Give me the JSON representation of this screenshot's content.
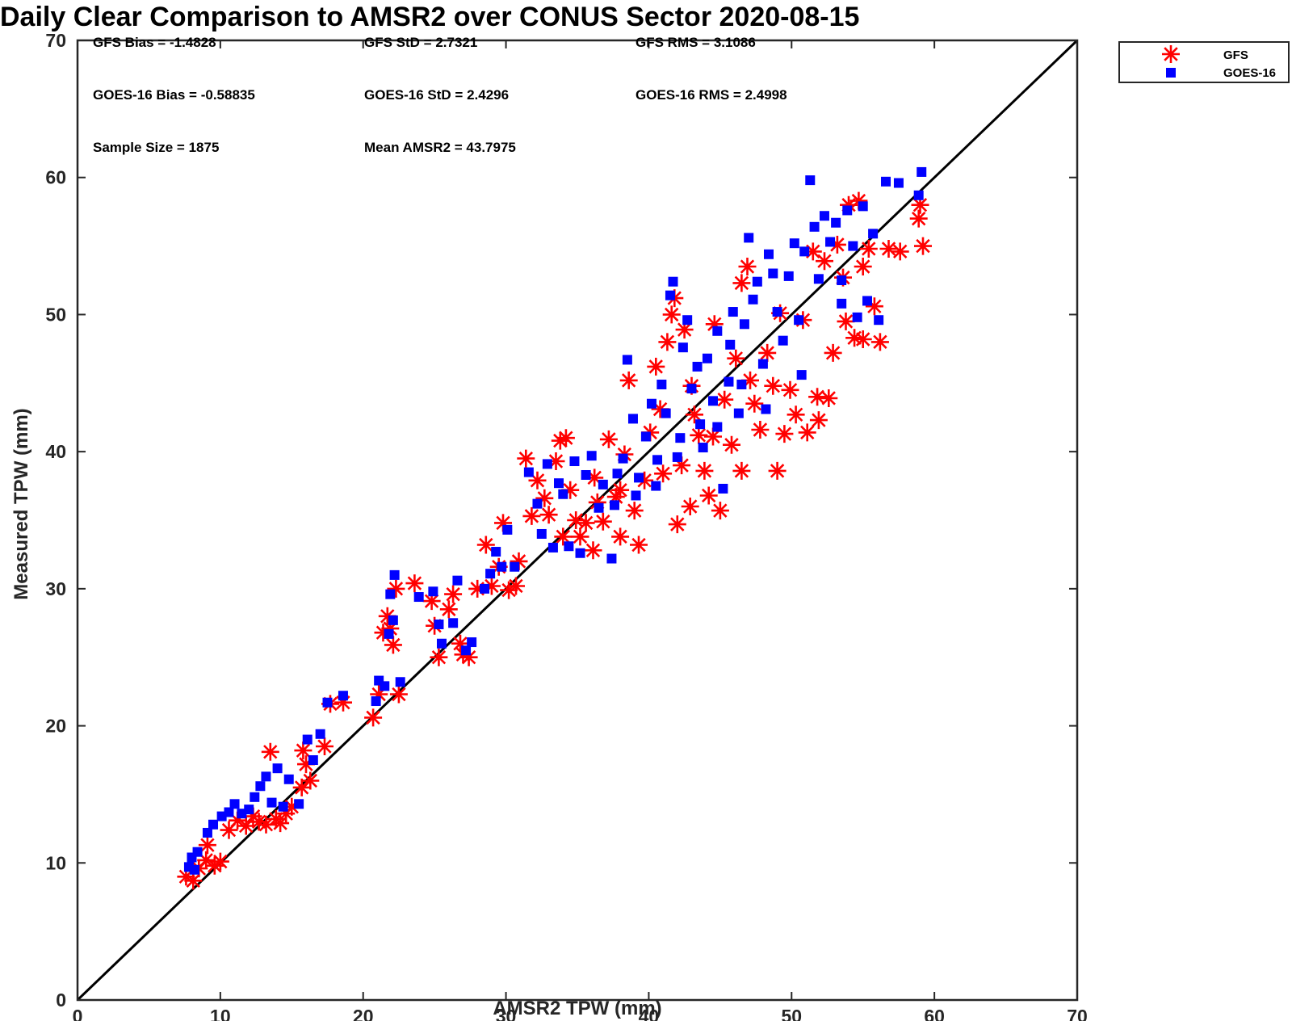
{
  "chart_data": {
    "type": "scatter",
    "title": "Daily Clear Comparison to AMSR2 over CONUS Sector 2020-08-15",
    "xlabel": "AMSR2 TPW (mm)",
    "ylabel": "Measured TPW (mm)",
    "xlim": [
      0,
      70
    ],
    "ylim": [
      0,
      70
    ],
    "xticks": [
      "0",
      "10",
      "20",
      "30",
      "40",
      "50",
      "60",
      "70"
    ],
    "yticks": [
      "0",
      "10",
      "20",
      "30",
      "40",
      "50",
      "60",
      "70"
    ],
    "grid": false,
    "legend_position": "outside top-right",
    "reference_line": {
      "x": [
        0,
        70
      ],
      "y": [
        0,
        70
      ]
    },
    "stats": [
      "GFS Bias = -1.4828",
      "GFS StD = 2.7321",
      "GFS RMS = 3.1086",
      "GOES-16 Bias = -0.58835",
      "GOES-16 StD = 2.4296",
      "GOES-16 RMS = 2.4998",
      "Sample Size = 1875",
      "Mean AMSR2 = 43.7975"
    ],
    "series": [
      {
        "name": "GFS",
        "marker": "asterisk",
        "color": "#ff0000",
        "points": [
          [
            7.6,
            9.0
          ],
          [
            8.1,
            8.7
          ],
          [
            8.5,
            9.6
          ],
          [
            9.0,
            10.2
          ],
          [
            9.6,
            9.8
          ],
          [
            10.0,
            10.1
          ],
          [
            9.1,
            11.3
          ],
          [
            10.6,
            12.4
          ],
          [
            11.2,
            13.1
          ],
          [
            11.8,
            12.7
          ],
          [
            12.3,
            13.4
          ],
          [
            12.7,
            13.0
          ],
          [
            13.2,
            12.8
          ],
          [
            13.5,
            18.1
          ],
          [
            13.9,
            13.2
          ],
          [
            14.2,
            12.9
          ],
          [
            14.6,
            13.6
          ],
          [
            15.0,
            14.1
          ],
          [
            15.7,
            15.5
          ],
          [
            16.0,
            17.2
          ],
          [
            15.8,
            18.2
          ],
          [
            16.3,
            16.0
          ],
          [
            17.3,
            18.5
          ],
          [
            17.7,
            21.6
          ],
          [
            18.6,
            21.7
          ],
          [
            20.7,
            20.6
          ],
          [
            21.1,
            22.3
          ],
          [
            21.4,
            26.8
          ],
          [
            21.7,
            28.0
          ],
          [
            22.1,
            25.9
          ],
          [
            21.9,
            27.1
          ],
          [
            22.3,
            30.0
          ],
          [
            22.5,
            22.3
          ],
          [
            23.6,
            30.4
          ],
          [
            24.8,
            29.1
          ],
          [
            25.3,
            25.0
          ],
          [
            25.0,
            27.3
          ],
          [
            26.0,
            28.5
          ],
          [
            26.3,
            29.6
          ],
          [
            26.8,
            26.0
          ],
          [
            27.0,
            25.2
          ],
          [
            27.4,
            25.0
          ],
          [
            28.0,
            30.0
          ],
          [
            28.6,
            33.2
          ],
          [
            29.0,
            30.2
          ],
          [
            29.5,
            31.6
          ],
          [
            29.8,
            34.8
          ],
          [
            30.2,
            29.9
          ],
          [
            30.7,
            30.2
          ],
          [
            30.9,
            32.0
          ],
          [
            31.4,
            39.5
          ],
          [
            31.8,
            35.3
          ],
          [
            32.2,
            37.9
          ],
          [
            32.7,
            36.6
          ],
          [
            33.0,
            35.4
          ],
          [
            33.5,
            39.3
          ],
          [
            33.8,
            40.8
          ],
          [
            34.2,
            41.0
          ],
          [
            34.5,
            37.2
          ],
          [
            34.9,
            35.0
          ],
          [
            35.2,
            33.8
          ],
          [
            35.6,
            34.8
          ],
          [
            36.1,
            32.8
          ],
          [
            36.4,
            36.3
          ],
          [
            36.8,
            34.9
          ],
          [
            37.2,
            40.9
          ],
          [
            37.7,
            36.7
          ],
          [
            38.0,
            33.8
          ],
          [
            38.3,
            39.8
          ],
          [
            38.6,
            45.2
          ],
          [
            39.0,
            35.7
          ],
          [
            39.3,
            33.2
          ],
          [
            39.7,
            37.9
          ],
          [
            40.1,
            41.4
          ],
          [
            40.5,
            46.2
          ],
          [
            41.0,
            38.4
          ],
          [
            41.3,
            48.0
          ],
          [
            41.6,
            50.0
          ],
          [
            41.8,
            51.2
          ],
          [
            42.0,
            34.7
          ],
          [
            42.3,
            39.0
          ],
          [
            42.5,
            48.9
          ],
          [
            42.9,
            36.0
          ],
          [
            43.2,
            42.7
          ],
          [
            43.5,
            41.2
          ],
          [
            43.9,
            38.6
          ],
          [
            44.2,
            36.8
          ],
          [
            44.6,
            49.3
          ],
          [
            45.0,
            35.7
          ],
          [
            45.3,
            43.8
          ],
          [
            45.8,
            40.5
          ],
          [
            46.1,
            46.8
          ],
          [
            46.5,
            52.3
          ],
          [
            46.9,
            53.5
          ],
          [
            47.1,
            45.2
          ],
          [
            47.4,
            43.5
          ],
          [
            47.8,
            41.6
          ],
          [
            48.3,
            47.2
          ],
          [
            48.7,
            44.8
          ],
          [
            49.2,
            50.1
          ],
          [
            49.5,
            41.3
          ],
          [
            49.9,
            44.5
          ],
          [
            50.3,
            42.7
          ],
          [
            50.8,
            49.6
          ],
          [
            51.1,
            41.4
          ],
          [
            51.5,
            54.6
          ],
          [
            51.9,
            42.3
          ],
          [
            52.3,
            53.9
          ],
          [
            52.6,
            43.9
          ],
          [
            52.9,
            47.2
          ],
          [
            53.2,
            55.1
          ],
          [
            53.6,
            52.7
          ],
          [
            54.0,
            58.0
          ],
          [
            54.4,
            48.3
          ],
          [
            54.7,
            58.3
          ],
          [
            55.0,
            53.5
          ],
          [
            55.4,
            54.8
          ],
          [
            55.8,
            50.6
          ],
          [
            56.2,
            48.0
          ],
          [
            56.8,
            54.8
          ],
          [
            57.6,
            54.6
          ],
          [
            58.9,
            57.0
          ],
          [
            59.0,
            58.0
          ],
          [
            59.2,
            55.0
          ],
          [
            55.0,
            48.2
          ],
          [
            51.8,
            44.0
          ],
          [
            49.0,
            38.6
          ],
          [
            46.5,
            38.6
          ],
          [
            44.5,
            41.1
          ],
          [
            43.0,
            44.8
          ],
          [
            40.8,
            43.1
          ],
          [
            38.0,
            37.2
          ],
          [
            36.2,
            38.1
          ],
          [
            34.0,
            33.8
          ],
          [
            53.8,
            49.5
          ]
        ]
      },
      {
        "name": "GOES-16",
        "marker": "square",
        "color": "#0000ff",
        "points": [
          [
            7.8,
            9.7
          ],
          [
            8.0,
            10.4
          ],
          [
            8.4,
            10.8
          ],
          [
            8.2,
            9.5
          ],
          [
            9.1,
            12.2
          ],
          [
            9.5,
            12.8
          ],
          [
            10.1,
            13.4
          ],
          [
            10.6,
            13.7
          ],
          [
            11.0,
            14.3
          ],
          [
            11.5,
            13.6
          ],
          [
            12.0,
            13.9
          ],
          [
            12.4,
            14.8
          ],
          [
            12.8,
            15.6
          ],
          [
            13.2,
            16.3
          ],
          [
            13.6,
            14.4
          ],
          [
            14.0,
            16.9
          ],
          [
            14.4,
            14.1
          ],
          [
            14.8,
            16.1
          ],
          [
            15.5,
            14.3
          ],
          [
            16.1,
            19.0
          ],
          [
            16.5,
            17.5
          ],
          [
            17.0,
            19.4
          ],
          [
            17.5,
            21.7
          ],
          [
            18.6,
            22.2
          ],
          [
            20.9,
            21.8
          ],
          [
            21.1,
            23.3
          ],
          [
            21.5,
            22.9
          ],
          [
            21.9,
            29.6
          ],
          [
            22.2,
            31.0
          ],
          [
            22.1,
            27.7
          ],
          [
            21.8,
            26.7
          ],
          [
            22.6,
            23.2
          ],
          [
            23.9,
            29.4
          ],
          [
            24.9,
            29.8
          ],
          [
            25.3,
            27.4
          ],
          [
            25.5,
            26.0
          ],
          [
            26.3,
            27.5
          ],
          [
            26.6,
            30.6
          ],
          [
            27.2,
            25.5
          ],
          [
            27.6,
            26.1
          ],
          [
            28.5,
            30.0
          ],
          [
            28.9,
            31.1
          ],
          [
            29.3,
            32.7
          ],
          [
            29.7,
            31.6
          ],
          [
            30.1,
            34.3
          ],
          [
            30.6,
            31.6
          ],
          [
            31.6,
            38.5
          ],
          [
            32.2,
            36.2
          ],
          [
            32.5,
            34.0
          ],
          [
            32.9,
            39.1
          ],
          [
            33.3,
            33.0
          ],
          [
            33.7,
            37.7
          ],
          [
            34.0,
            36.9
          ],
          [
            34.4,
            33.1
          ],
          [
            34.8,
            39.3
          ],
          [
            35.2,
            32.6
          ],
          [
            35.6,
            38.3
          ],
          [
            36.0,
            39.7
          ],
          [
            36.5,
            35.9
          ],
          [
            36.8,
            37.6
          ],
          [
            37.4,
            32.2
          ],
          [
            37.8,
            38.4
          ],
          [
            38.2,
            39.5
          ],
          [
            38.5,
            46.7
          ],
          [
            38.9,
            42.4
          ],
          [
            39.3,
            38.1
          ],
          [
            39.8,
            41.1
          ],
          [
            40.2,
            43.5
          ],
          [
            40.5,
            37.5
          ],
          [
            40.9,
            44.9
          ],
          [
            41.2,
            42.8
          ],
          [
            41.5,
            51.4
          ],
          [
            41.7,
            52.4
          ],
          [
            42.0,
            39.6
          ],
          [
            42.4,
            47.6
          ],
          [
            42.7,
            49.6
          ],
          [
            43.0,
            44.6
          ],
          [
            43.4,
            46.2
          ],
          [
            43.8,
            40.3
          ],
          [
            44.1,
            46.8
          ],
          [
            44.5,
            43.7
          ],
          [
            44.8,
            48.8
          ],
          [
            45.2,
            37.3
          ],
          [
            45.6,
            45.1
          ],
          [
            45.9,
            50.2
          ],
          [
            46.3,
            42.8
          ],
          [
            46.7,
            49.3
          ],
          [
            47.0,
            55.6
          ],
          [
            47.3,
            51.1
          ],
          [
            47.6,
            52.4
          ],
          [
            48.0,
            46.4
          ],
          [
            48.4,
            54.4
          ],
          [
            48.7,
            53.0
          ],
          [
            49.0,
            50.2
          ],
          [
            49.4,
            48.1
          ],
          [
            49.8,
            52.8
          ],
          [
            50.2,
            55.2
          ],
          [
            50.5,
            49.6
          ],
          [
            50.9,
            54.6
          ],
          [
            51.3,
            59.8
          ],
          [
            51.6,
            56.4
          ],
          [
            51.9,
            52.6
          ],
          [
            52.3,
            57.2
          ],
          [
            52.7,
            55.3
          ],
          [
            53.1,
            56.7
          ],
          [
            53.5,
            50.8
          ],
          [
            53.9,
            57.6
          ],
          [
            54.3,
            55.0
          ],
          [
            54.6,
            49.8
          ],
          [
            55.0,
            57.9
          ],
          [
            55.3,
            51.0
          ],
          [
            55.7,
            55.9
          ],
          [
            56.1,
            49.6
          ],
          [
            56.6,
            59.7
          ],
          [
            57.5,
            59.6
          ],
          [
            58.9,
            58.7
          ],
          [
            59.1,
            60.4
          ],
          [
            53.5,
            52.5
          ],
          [
            50.7,
            45.6
          ],
          [
            48.2,
            43.1
          ],
          [
            46.5,
            44.9
          ],
          [
            44.8,
            41.8
          ],
          [
            43.6,
            42.0
          ],
          [
            42.2,
            41.0
          ],
          [
            40.6,
            39.4
          ],
          [
            39.1,
            36.8
          ],
          [
            37.6,
            36.1
          ],
          [
            45.7,
            47.8
          ]
        ]
      }
    ]
  }
}
